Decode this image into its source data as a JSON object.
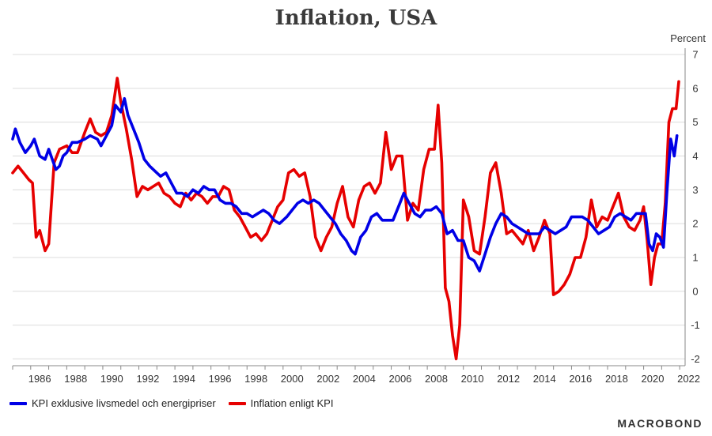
{
  "chart_data": {
    "type": "line",
    "title": "Inflation, USA",
    "ylabel": "Percent",
    "ylim": [
      -2.2,
      7
    ],
    "yticks": [
      "-2",
      "-1",
      "0",
      "1",
      "2",
      "3",
      "4",
      "5",
      "6",
      "7"
    ],
    "xlim": [
      1985.0,
      2022.3
    ],
    "xticks": [
      "1986",
      "1988",
      "1990",
      "1992",
      "1994",
      "1996",
      "1998",
      "2000",
      "2002",
      "2004",
      "2006",
      "2008",
      "2010",
      "2012",
      "2014",
      "2016",
      "2018",
      "2020",
      "2022"
    ],
    "legend_position": "bottom-left",
    "series": [
      {
        "name": "KPI exklusive livsmedel och energipriser",
        "color": "#0000e6",
        "points": [
          [
            1985.0,
            4.5
          ],
          [
            1985.15,
            4.8
          ],
          [
            1985.4,
            4.4
          ],
          [
            1985.7,
            4.1
          ],
          [
            1986.0,
            4.3
          ],
          [
            1986.2,
            4.5
          ],
          [
            1986.5,
            4.0
          ],
          [
            1986.8,
            3.9
          ],
          [
            1987.0,
            4.2
          ],
          [
            1987.2,
            3.9
          ],
          [
            1987.4,
            3.6
          ],
          [
            1987.6,
            3.7
          ],
          [
            1987.8,
            4.0
          ],
          [
            1988.0,
            4.1
          ],
          [
            1988.3,
            4.4
          ],
          [
            1988.6,
            4.4
          ],
          [
            1989.0,
            4.5
          ],
          [
            1989.3,
            4.6
          ],
          [
            1989.7,
            4.5
          ],
          [
            1989.9,
            4.3
          ],
          [
            1990.2,
            4.6
          ],
          [
            1990.5,
            4.9
          ],
          [
            1990.7,
            5.5
          ],
          [
            1991.0,
            5.3
          ],
          [
            1991.2,
            5.7
          ],
          [
            1991.4,
            5.2
          ],
          [
            1991.7,
            4.8
          ],
          [
            1992.0,
            4.4
          ],
          [
            1992.3,
            3.9
          ],
          [
            1992.6,
            3.7
          ],
          [
            1992.8,
            3.6
          ],
          [
            1993.2,
            3.4
          ],
          [
            1993.5,
            3.5
          ],
          [
            1993.8,
            3.2
          ],
          [
            1994.1,
            2.9
          ],
          [
            1994.4,
            2.9
          ],
          [
            1994.7,
            2.8
          ],
          [
            1995.0,
            3.0
          ],
          [
            1995.3,
            2.9
          ],
          [
            1995.6,
            3.1
          ],
          [
            1995.9,
            3.0
          ],
          [
            1996.2,
            3.0
          ],
          [
            1996.5,
            2.7
          ],
          [
            1996.8,
            2.6
          ],
          [
            1997.1,
            2.6
          ],
          [
            1997.4,
            2.5
          ],
          [
            1997.7,
            2.3
          ],
          [
            1998.0,
            2.3
          ],
          [
            1998.3,
            2.2
          ],
          [
            1998.6,
            2.3
          ],
          [
            1998.9,
            2.4
          ],
          [
            1999.2,
            2.3
          ],
          [
            1999.5,
            2.1
          ],
          [
            1999.8,
            2.0
          ],
          [
            2000.2,
            2.2
          ],
          [
            2000.5,
            2.4
          ],
          [
            2000.8,
            2.6
          ],
          [
            2001.1,
            2.7
          ],
          [
            2001.4,
            2.6
          ],
          [
            2001.7,
            2.7
          ],
          [
            2002.0,
            2.6
          ],
          [
            2002.3,
            2.4
          ],
          [
            2002.6,
            2.2
          ],
          [
            2002.9,
            2.0
          ],
          [
            2003.2,
            1.7
          ],
          [
            2003.5,
            1.5
          ],
          [
            2003.8,
            1.2
          ],
          [
            2004.0,
            1.1
          ],
          [
            2004.3,
            1.6
          ],
          [
            2004.6,
            1.8
          ],
          [
            2004.9,
            2.2
          ],
          [
            2005.2,
            2.3
          ],
          [
            2005.5,
            2.1
          ],
          [
            2005.8,
            2.1
          ],
          [
            2006.1,
            2.1
          ],
          [
            2006.4,
            2.5
          ],
          [
            2006.7,
            2.9
          ],
          [
            2007.0,
            2.6
          ],
          [
            2007.3,
            2.3
          ],
          [
            2007.6,
            2.2
          ],
          [
            2007.9,
            2.4
          ],
          [
            2008.2,
            2.4
          ],
          [
            2008.5,
            2.5
          ],
          [
            2008.8,
            2.3
          ],
          [
            2009.1,
            1.7
          ],
          [
            2009.4,
            1.8
          ],
          [
            2009.7,
            1.5
          ],
          [
            2010.0,
            1.5
          ],
          [
            2010.3,
            1.0
          ],
          [
            2010.6,
            0.9
          ],
          [
            2010.9,
            0.6
          ],
          [
            2011.2,
            1.1
          ],
          [
            2011.5,
            1.6
          ],
          [
            2011.8,
            2.0
          ],
          [
            2012.1,
            2.3
          ],
          [
            2012.4,
            2.2
          ],
          [
            2012.7,
            2.0
          ],
          [
            2013.0,
            1.9
          ],
          [
            2013.3,
            1.8
          ],
          [
            2013.6,
            1.7
          ],
          [
            2013.9,
            1.7
          ],
          [
            2014.2,
            1.7
          ],
          [
            2014.5,
            1.9
          ],
          [
            2014.8,
            1.8
          ],
          [
            2015.1,
            1.7
          ],
          [
            2015.4,
            1.8
          ],
          [
            2015.7,
            1.9
          ],
          [
            2016.0,
            2.2
          ],
          [
            2016.3,
            2.2
          ],
          [
            2016.6,
            2.2
          ],
          [
            2016.9,
            2.1
          ],
          [
            2017.2,
            1.9
          ],
          [
            2017.5,
            1.7
          ],
          [
            2017.8,
            1.8
          ],
          [
            2018.1,
            1.9
          ],
          [
            2018.4,
            2.2
          ],
          [
            2018.7,
            2.3
          ],
          [
            2019.0,
            2.2
          ],
          [
            2019.3,
            2.1
          ],
          [
            2019.6,
            2.3
          ],
          [
            2019.9,
            2.3
          ],
          [
            2020.1,
            2.3
          ],
          [
            2020.3,
            1.4
          ],
          [
            2020.5,
            1.2
          ],
          [
            2020.7,
            1.7
          ],
          [
            2020.9,
            1.6
          ],
          [
            2021.1,
            1.3
          ],
          [
            2021.3,
            3.0
          ],
          [
            2021.5,
            4.5
          ],
          [
            2021.7,
            4.0
          ],
          [
            2021.85,
            4.6
          ]
        ]
      },
      {
        "name": "Inflation enligt KPI",
        "color": "#e60000",
        "points": [
          [
            1985.0,
            3.5
          ],
          [
            1985.3,
            3.7
          ],
          [
            1985.6,
            3.5
          ],
          [
            1985.9,
            3.3
          ],
          [
            1986.1,
            3.2
          ],
          [
            1986.3,
            1.6
          ],
          [
            1986.5,
            1.8
          ],
          [
            1986.8,
            1.2
          ],
          [
            1987.0,
            1.4
          ],
          [
            1987.3,
            3.8
          ],
          [
            1987.6,
            4.2
          ],
          [
            1988.0,
            4.3
          ],
          [
            1988.3,
            4.1
          ],
          [
            1988.6,
            4.1
          ],
          [
            1989.0,
            4.7
          ],
          [
            1989.3,
            5.1
          ],
          [
            1989.6,
            4.7
          ],
          [
            1989.9,
            4.6
          ],
          [
            1990.2,
            4.7
          ],
          [
            1990.5,
            5.2
          ],
          [
            1990.8,
            6.3
          ],
          [
            1991.0,
            5.6
          ],
          [
            1991.3,
            4.8
          ],
          [
            1991.6,
            3.9
          ],
          [
            1991.9,
            2.8
          ],
          [
            1992.2,
            3.1
          ],
          [
            1992.5,
            3.0
          ],
          [
            1992.8,
            3.1
          ],
          [
            1993.1,
            3.2
          ],
          [
            1993.4,
            2.9
          ],
          [
            1993.7,
            2.8
          ],
          [
            1994.0,
            2.6
          ],
          [
            1994.3,
            2.5
          ],
          [
            1994.6,
            2.9
          ],
          [
            1994.9,
            2.7
          ],
          [
            1995.2,
            2.9
          ],
          [
            1995.5,
            2.8
          ],
          [
            1995.8,
            2.6
          ],
          [
            1996.1,
            2.8
          ],
          [
            1996.4,
            2.8
          ],
          [
            1996.7,
            3.1
          ],
          [
            1997.0,
            3.0
          ],
          [
            1997.3,
            2.4
          ],
          [
            1997.6,
            2.2
          ],
          [
            1997.9,
            1.9
          ],
          [
            1998.2,
            1.6
          ],
          [
            1998.5,
            1.7
          ],
          [
            1998.8,
            1.5
          ],
          [
            1999.1,
            1.7
          ],
          [
            1999.4,
            2.1
          ],
          [
            1999.7,
            2.5
          ],
          [
            2000.0,
            2.7
          ],
          [
            2000.3,
            3.5
          ],
          [
            2000.6,
            3.6
          ],
          [
            2000.9,
            3.4
          ],
          [
            2001.2,
            3.5
          ],
          [
            2001.5,
            2.8
          ],
          [
            2001.8,
            1.6
          ],
          [
            2002.1,
            1.2
          ],
          [
            2002.4,
            1.6
          ],
          [
            2002.7,
            1.9
          ],
          [
            2003.0,
            2.6
          ],
          [
            2003.3,
            3.1
          ],
          [
            2003.6,
            2.2
          ],
          [
            2003.9,
            1.9
          ],
          [
            2004.2,
            2.7
          ],
          [
            2004.5,
            3.1
          ],
          [
            2004.8,
            3.2
          ],
          [
            2005.1,
            2.9
          ],
          [
            2005.4,
            3.2
          ],
          [
            2005.7,
            4.7
          ],
          [
            2006.0,
            3.6
          ],
          [
            2006.3,
            4.0
          ],
          [
            2006.6,
            4.0
          ],
          [
            2006.9,
            2.1
          ],
          [
            2007.2,
            2.6
          ],
          [
            2007.5,
            2.4
          ],
          [
            2007.8,
            3.6
          ],
          [
            2008.1,
            4.2
          ],
          [
            2008.4,
            4.2
          ],
          [
            2008.6,
            5.5
          ],
          [
            2008.8,
            3.8
          ],
          [
            2009.0,
            0.1
          ],
          [
            2009.2,
            -0.3
          ],
          [
            2009.4,
            -1.3
          ],
          [
            2009.6,
            -2.0
          ],
          [
            2009.8,
            -1.0
          ],
          [
            2010.0,
            2.7
          ],
          [
            2010.3,
            2.2
          ],
          [
            2010.6,
            1.2
          ],
          [
            2010.9,
            1.1
          ],
          [
            2011.2,
            2.2
          ],
          [
            2011.5,
            3.5
          ],
          [
            2011.8,
            3.8
          ],
          [
            2012.1,
            2.9
          ],
          [
            2012.4,
            1.7
          ],
          [
            2012.7,
            1.8
          ],
          [
            2013.0,
            1.6
          ],
          [
            2013.3,
            1.4
          ],
          [
            2013.6,
            1.8
          ],
          [
            2013.9,
            1.2
          ],
          [
            2014.2,
            1.6
          ],
          [
            2014.5,
            2.1
          ],
          [
            2014.8,
            1.7
          ],
          [
            2015.0,
            -0.1
          ],
          [
            2015.3,
            0.0
          ],
          [
            2015.6,
            0.2
          ],
          [
            2015.9,
            0.5
          ],
          [
            2016.2,
            1.0
          ],
          [
            2016.5,
            1.0
          ],
          [
            2016.8,
            1.6
          ],
          [
            2017.1,
            2.7
          ],
          [
            2017.4,
            1.9
          ],
          [
            2017.7,
            2.2
          ],
          [
            2018.0,
            2.1
          ],
          [
            2018.3,
            2.5
          ],
          [
            2018.6,
            2.9
          ],
          [
            2018.9,
            2.2
          ],
          [
            2019.2,
            1.9
          ],
          [
            2019.5,
            1.8
          ],
          [
            2019.8,
            2.1
          ],
          [
            2020.0,
            2.5
          ],
          [
            2020.2,
            1.5
          ],
          [
            2020.4,
            0.2
          ],
          [
            2020.6,
            1.0
          ],
          [
            2020.8,
            1.4
          ],
          [
            2021.0,
            1.4
          ],
          [
            2021.2,
            2.6
          ],
          [
            2021.4,
            5.0
          ],
          [
            2021.6,
            5.4
          ],
          [
            2021.8,
            5.4
          ],
          [
            2021.95,
            6.2
          ]
        ]
      }
    ]
  },
  "branding": {
    "logo_text": "MACROBOND"
  }
}
